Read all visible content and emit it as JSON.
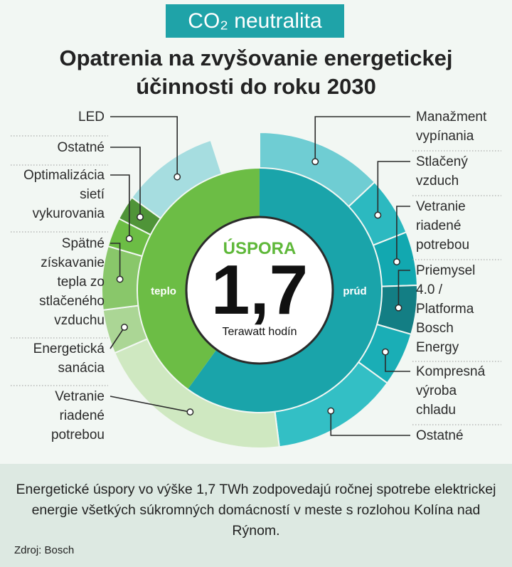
{
  "header": {
    "badge": "CO₂ neutralita",
    "title_line1": "Opatrenia na zvyšovanie energetickej",
    "title_line2": "účinnosti do roku 2030"
  },
  "colors": {
    "background": "#f2f7f3",
    "badge_bg": "#1fa3a8",
    "teplo": "#6cbd45",
    "prud": "#1aa4aa",
    "leader": "#2b2b2b"
  },
  "chart_data": {
    "type": "donut",
    "center": {
      "label": "ÚSPORA",
      "value": "1,7",
      "unit": "Terawatt hodín"
    },
    "inner_ring": [
      {
        "name": "teplo",
        "share": 0.4,
        "color": "#6cbd45"
      },
      {
        "name": "prúd",
        "share": 0.6,
        "color": "#1aa4aa"
      }
    ],
    "outer_ring": [
      {
        "group": "prúd",
        "label": "Manažment vypínania",
        "lines": [
          "Manažment",
          "vypínania"
        ],
        "share": 0.13,
        "color": "#6fcdd3"
      },
      {
        "group": "prúd",
        "label": "Stlačený vzduch",
        "lines": [
          "Stlačený",
          "vzduch"
        ],
        "share": 0.06,
        "color": "#2cb9c0"
      },
      {
        "group": "prúd",
        "label": "Vetranie riadené potrebou",
        "lines": [
          "Vetranie",
          "riadené",
          "potrebou"
        ],
        "share": 0.055,
        "color": "#12a8b0"
      },
      {
        "group": "prúd",
        "label": "Priemysel 4.0 / Platforma Bosch Energy",
        "lines": [
          "Priemysel",
          "4.0 /",
          "Platforma",
          "Bosch",
          "Energy"
        ],
        "share": 0.05,
        "color": "#137e84"
      },
      {
        "group": "prúd",
        "label": "Kompresná výroba chladu",
        "lines": [
          "Kompresná",
          "výroba",
          "chladu"
        ],
        "share": 0.055,
        "color": "#1aaeb6"
      },
      {
        "group": "prúd",
        "label": "Ostatné",
        "lines": [
          "Ostatné"
        ],
        "share": 0.13,
        "color": "#33bfc5"
      },
      {
        "group": "teplo",
        "label": "Vetranie riadené potrebou",
        "lines": [
          "Vetranie",
          "riadené",
          "potrebou"
        ],
        "share": 0.205,
        "color": "#cfe8c1"
      },
      {
        "group": "teplo",
        "label": "Energetická sanácia",
        "lines": [
          "Energetická",
          "sanácia"
        ],
        "share": 0.045,
        "color": "#abd695"
      },
      {
        "group": "teplo",
        "label": "Spätné získavanie tepla zo stlačeného vzduchu",
        "lines": [
          "Spätné",
          "získavanie",
          "tepla zo",
          "stlačeného",
          "vzduchu"
        ],
        "share": 0.065,
        "color": "#89c76a"
      },
      {
        "group": "teplo",
        "label": "Optimalizácia sietí vykurovania",
        "lines": [
          "Optimalizácia",
          "sietí",
          "vykurovania"
        ],
        "share": 0.03,
        "color": "#6cbd45"
      },
      {
        "group": "teplo",
        "label": "Ostatné",
        "lines": [
          "Ostatné"
        ],
        "share": 0.025,
        "color": "#4f9438"
      },
      {
        "group": "prúd",
        "label": "LED",
        "lines": [
          "LED"
        ],
        "share": 0.1,
        "color": "#a6dde0"
      }
    ]
  },
  "footer": {
    "note": "Energetické úspory vo výške 1,7 TWh zodpovedajú ročnej spotrebe elektrickej energie všetkých súkromných domácností v meste s rozlohou Kolína nad Rýnom.",
    "source": "Zdroj: Bosch"
  }
}
